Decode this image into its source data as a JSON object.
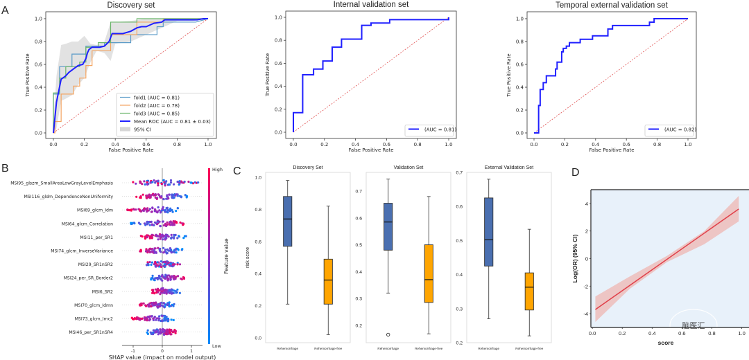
{
  "panel_labels": {
    "A": "A",
    "B": "B",
    "C": "C",
    "D": "D"
  },
  "chart_data": [
    {
      "id": "roc_discovery",
      "type": "line",
      "title": "Discovery set",
      "xlabel": "False Positive Rate",
      "ylabel": "True Positive Rate",
      "xlim": [
        0,
        1
      ],
      "ylim": [
        0,
        1
      ],
      "xticks": [
        "0.0",
        "0.2",
        "0.4",
        "0.6",
        "0.8",
        "1.0"
      ],
      "yticks": [
        "0.0",
        "0.2",
        "0.4",
        "0.6",
        "0.8",
        "1.0"
      ],
      "legend_position": "bottom-right",
      "ci_label": "95% CI",
      "series": [
        {
          "name": "fold1 (AUC = 0.81)",
          "color": "#5b9bc8",
          "x": [
            0,
            0,
            0.04,
            0.04,
            0.12,
            0.12,
            0.21,
            0.21,
            0.33,
            0.33,
            0.5,
            0.5,
            0.67,
            0.67,
            0.71,
            0.71,
            0.92,
            1
          ],
          "y": [
            0,
            0.34,
            0.34,
            0.58,
            0.58,
            0.69,
            0.69,
            0.76,
            0.76,
            0.79,
            0.79,
            0.86,
            0.86,
            0.93,
            0.93,
            0.97,
            0.97,
            1
          ]
        },
        {
          "name": "fold2 (AUC = 0.78)",
          "color": "#f4a460",
          "x": [
            0,
            0.01,
            0.01,
            0.05,
            0.05,
            0.13,
            0.13,
            0.17,
            0.17,
            0.21,
            0.21,
            0.25,
            0.25,
            0.37,
            0.37,
            0.54,
            0.54,
            0.63,
            0.63,
            0.71,
            0.71,
            1
          ],
          "y": [
            0,
            0,
            0.1,
            0.1,
            0.34,
            0.34,
            0.41,
            0.41,
            0.48,
            0.48,
            0.59,
            0.59,
            0.72,
            0.72,
            0.86,
            0.86,
            0.97,
            0.97,
            0.97,
            0.97,
            1,
            1
          ]
        },
        {
          "name": "fold3 (AUC = 0.85)",
          "color": "#6ab56a",
          "x": [
            0,
            0,
            0.04,
            0.04,
            0.08,
            0.08,
            0.17,
            0.17,
            0.21,
            0.21,
            0.29,
            0.29,
            0.37,
            0.37,
            0.54,
            0.54,
            1
          ],
          "y": [
            0,
            0.35,
            0.35,
            0.48,
            0.48,
            0.58,
            0.58,
            0.62,
            0.62,
            0.75,
            0.75,
            0.79,
            0.79,
            0.97,
            0.97,
            1,
            1
          ]
        },
        {
          "name": "Mean ROC (AUC = 0.81 ± 0.03)",
          "color": "#2020ff",
          "bold": true,
          "x": [
            0,
            0.02,
            0.02,
            0.05,
            0.05,
            0.08,
            0.1,
            0.13,
            0.16,
            0.19,
            0.21,
            0.22,
            0.23,
            0.25,
            0.27,
            0.3,
            0.33,
            0.36,
            0.38,
            0.4,
            0.45,
            0.5,
            0.54,
            0.57,
            0.6,
            0.65,
            0.7,
            0.72,
            0.8,
            0.93,
            0.97,
            1
          ],
          "y": [
            0,
            0.27,
            0.27,
            0.47,
            0.47,
            0.5,
            0.53,
            0.56,
            0.59,
            0.6,
            0.65,
            0.7,
            0.73,
            0.75,
            0.75,
            0.75,
            0.76,
            0.8,
            0.87,
            0.87,
            0.87,
            0.89,
            0.92,
            0.93,
            0.93,
            0.96,
            0.97,
            0.99,
            0.99,
            0.99,
            1,
            1
          ]
        }
      ],
      "ci_band": {
        "x": [
          0,
          0.02,
          0.05,
          0.08,
          0.12,
          0.16,
          0.2,
          0.24,
          0.28,
          0.33,
          0.37,
          0.4,
          0.5,
          0.6,
          0.7,
          0.8,
          0.9,
          1
        ],
        "upper": [
          0.1,
          0.5,
          0.77,
          0.78,
          0.8,
          0.8,
          0.85,
          0.78,
          0.77,
          0.8,
          0.97,
          0.97,
          0.98,
          1,
          1,
          1,
          1,
          1
        ],
        "lower": [
          0,
          0.04,
          0.28,
          0.3,
          0.33,
          0.42,
          0.48,
          0.62,
          0.72,
          0.7,
          0.63,
          0.78,
          0.8,
          0.86,
          0.92,
          0.98,
          0.98,
          1
        ]
      }
    },
    {
      "id": "roc_internal",
      "type": "line",
      "title": "Internal validation set",
      "xlabel": "False Positive Rate",
      "ylabel": "True Positive Rate",
      "xlim": [
        0,
        1
      ],
      "ylim": [
        0,
        1
      ],
      "xticks": [
        "0.0",
        "0.2",
        "0.4",
        "0.6",
        "0.8",
        "1.0"
      ],
      "yticks": [
        "0.0",
        "0.2",
        "0.4",
        "0.6",
        "0.8",
        "1.0"
      ],
      "legend_position": "bottom-right",
      "series": [
        {
          "name": "(AUC = 0.81)",
          "color": "#2020ff",
          "x": [
            0,
            0,
            0.06,
            0.06,
            0.13,
            0.13,
            0.19,
            0.19,
            0.25,
            0.25,
            0.31,
            0.31,
            0.44,
            0.44,
            0.5,
            0.5,
            0.62,
            0.62,
            1,
            1
          ],
          "y": [
            0,
            0.17,
            0.17,
            0.5,
            0.5,
            0.55,
            0.55,
            0.62,
            0.62,
            0.74,
            0.74,
            0.81,
            0.81,
            0.93,
            0.93,
            0.95,
            0.95,
            0.98,
            0.98,
            1
          ]
        }
      ]
    },
    {
      "id": "roc_temporal",
      "type": "line",
      "title": "Temporal external validation set",
      "xlabel": "False Positive Rate",
      "ylabel": "True Positive Rate",
      "xlim": [
        0,
        1
      ],
      "ylim": [
        0,
        1
      ],
      "xticks": [
        "0.0",
        "0.2",
        "0.4",
        "0.6",
        "0.8",
        "1.0"
      ],
      "yticks": [
        "0.0",
        "0.2",
        "0.4",
        "0.6",
        "0.8",
        "1.0"
      ],
      "legend_position": "bottom-right",
      "series": [
        {
          "name": "(AUC = 0.82)",
          "color": "#2020ff",
          "x": [
            0,
            0.03,
            0.03,
            0.04,
            0.04,
            0.06,
            0.06,
            0.08,
            0.08,
            0.14,
            0.14,
            0.15,
            0.15,
            0.18,
            0.18,
            0.19,
            0.19,
            0.21,
            0.21,
            0.23,
            0.23,
            0.3,
            0.3,
            0.38,
            0.38,
            0.48,
            0.48,
            0.51,
            0.51,
            0.75,
            0.75,
            0.78,
            0.78,
            1
          ],
          "y": [
            0,
            0,
            0.24,
            0.24,
            0.38,
            0.38,
            0.44,
            0.44,
            0.5,
            0.5,
            0.56,
            0.56,
            0.62,
            0.62,
            0.71,
            0.71,
            0.74,
            0.74,
            0.76,
            0.76,
            0.79,
            0.79,
            0.82,
            0.82,
            0.85,
            0.85,
            0.91,
            0.91,
            0.94,
            0.94,
            0.97,
            0.97,
            1,
            1
          ]
        }
      ]
    },
    {
      "id": "shap_summary",
      "type": "scatter",
      "xlabel": "SHAP value (impact on model output)",
      "xlim": [
        -1.3,
        1.3
      ],
      "xticks": [
        "-1",
        "0",
        "1"
      ],
      "colorbar": {
        "label": "Feature value",
        "high": "High",
        "low": "Low",
        "high_color": "#ff0052",
        "low_color": "#008bfb"
      },
      "features": [
        {
          "name": "MSI95_glszm_SmallAreaLowGrayLevelEmphasis",
          "min": -1.05,
          "max": 1.25,
          "low_side": "both"
        },
        {
          "name": "MSI116_gldm_DependenceNonUniformity",
          "min": -0.92,
          "max": 1.02,
          "low_side": "right"
        },
        {
          "name": "MSI69_glcm_Idm",
          "min": -1.25,
          "max": 0.62,
          "low_side": "right"
        },
        {
          "name": "MSI64_glcm_Correlation",
          "min": -1.08,
          "max": 0.85,
          "low_side": "left"
        },
        {
          "name": "MSI11_per_SR1",
          "min": -0.78,
          "max": 0.88,
          "low_side": "right"
        },
        {
          "name": "MSI74_glcm_InverseVariance",
          "min": -0.95,
          "max": 0.78,
          "low_side": "right"
        },
        {
          "name": "MSI29_SR1nSR2",
          "min": -0.55,
          "max": 0.62,
          "low_side": "mixed"
        },
        {
          "name": "MSI24_per_SR_Border2",
          "min": -0.48,
          "max": 0.82,
          "low_side": "left"
        },
        {
          "name": "MSI6_SR2",
          "min": -0.35,
          "max": 0.62,
          "low_side": "right"
        },
        {
          "name": "MSI70_glcm_Idmn",
          "min": -0.8,
          "max": 0.45,
          "low_side": "right"
        },
        {
          "name": "MSI73_glcm_Imc2",
          "min": -1.05,
          "max": 0.4,
          "low_side": "right"
        },
        {
          "name": "MSI46_per_SR1nSR4",
          "min": -0.55,
          "max": 0.48,
          "low_side": "left"
        }
      ]
    },
    {
      "id": "box_discovery",
      "type": "bar",
      "subtype": "boxplot",
      "title": "Discovery Set",
      "ylabel": "risk score",
      "ylim": [
        -0.03,
        1.03
      ],
      "yticks": [
        0.0,
        0.2,
        0.4,
        0.6,
        0.8,
        1.0
      ],
      "ytick_labels": [
        "0.0",
        "0.2",
        "0.4",
        "0.6",
        "0.8",
        "1.0"
      ],
      "categories": [
        "Rehemorrhage",
        "Rehemorrhage-free"
      ],
      "boxes": [
        {
          "min": 0.21,
          "q1": 0.57,
          "median": 0.74,
          "q3": 0.88,
          "max": 0.98,
          "color": "#4a6fb0",
          "outliers": []
        },
        {
          "min": 0.02,
          "q1": 0.21,
          "median": 0.36,
          "q3": 0.49,
          "max": 0.82,
          "color": "#ffa500",
          "outliers": []
        }
      ]
    },
    {
      "id": "box_validation",
      "type": "bar",
      "subtype": "boxplot",
      "title": "Validation Set",
      "ylim": [
        0.135,
        0.77
      ],
      "yticks": [
        0.2,
        0.3,
        0.4,
        0.5,
        0.6,
        0.7
      ],
      "ytick_labels": [
        "0.2",
        "0.3",
        "0.4",
        "0.5",
        "0.6",
        "0.7"
      ],
      "categories": [
        "Rehemorrhage",
        "Rehemorrhage-free"
      ],
      "boxes": [
        {
          "min": 0.32,
          "q1": 0.48,
          "median": 0.585,
          "q3": 0.655,
          "max": 0.745,
          "color": "#4a6fb0",
          "outliers": [
            0.165
          ]
        },
        {
          "min": 0.168,
          "q1": 0.285,
          "median": 0.37,
          "q3": 0.5,
          "max": 0.68,
          "color": "#ffa500",
          "outliers": []
        }
      ]
    },
    {
      "id": "box_external",
      "type": "bar",
      "subtype": "boxplot",
      "title": "External Validation Set",
      "ylim": [
        0.2,
        0.7
      ],
      "yticks": [
        0.2,
        0.3,
        0.4,
        0.5,
        0.6,
        0.7
      ],
      "ytick_labels": [
        "0.2",
        "0.3",
        "0.4",
        "0.5",
        "0.6",
        "0.7"
      ],
      "categories": [
        "Rehemorrhage",
        "Rehemorrhage-free"
      ],
      "boxes": [
        {
          "min": 0.27,
          "q1": 0.425,
          "median": 0.502,
          "q3": 0.625,
          "max": 0.68,
          "color": "#4a6fb0",
          "outliers": []
        },
        {
          "min": 0.22,
          "q1": 0.296,
          "median": 0.363,
          "q3": 0.405,
          "max": 0.533,
          "color": "#ffa500",
          "outliers": []
        }
      ]
    },
    {
      "id": "logor_line",
      "type": "line",
      "xlabel": "score",
      "ylabel": "Log(OR) (95% CI)",
      "xlim": [
        -0.01,
        1.03
      ],
      "ylim": [
        -5,
        5
      ],
      "xticks": [
        0.0,
        0.2,
        0.4,
        0.6,
        0.8,
        1.0
      ],
      "xtick_labels": [
        "0.0",
        "0.2",
        "0.4",
        "0.6",
        "0.8",
        "1.0"
      ],
      "yticks": [
        -4,
        -2,
        0,
        2,
        4
      ],
      "ytick_labels": [
        "-4",
        "-2",
        "0",
        "2",
        "4"
      ],
      "background": "#e8f1fa",
      "series": [
        {
          "name": "fit",
          "color": "#e0404a",
          "x": [
            0.02,
            0.98
          ],
          "y": [
            -3.7,
            3.6
          ]
        }
      ],
      "ci_band": {
        "x": [
          0.02,
          0.25,
          0.5,
          0.75,
          0.98
        ],
        "upper": [
          -2.75,
          -1.3,
          0.2,
          2.0,
          4.55
        ],
        "lower": [
          -4.6,
          -2.2,
          -0.25,
          1.05,
          2.7
        ]
      },
      "watermark": "脑医汇"
    }
  ]
}
